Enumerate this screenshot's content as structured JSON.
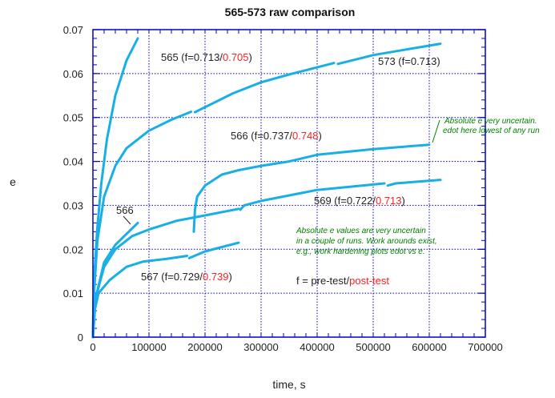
{
  "chart_data": {
    "type": "line",
    "title": "565-573 raw comparison",
    "xlabel": "time, s",
    "ylabel": "e",
    "xlim": [
      0,
      700000
    ],
    "ylim": [
      0,
      0.07
    ],
    "xticks": [
      "0",
      "100000",
      "200000",
      "300000",
      "400000",
      "500000",
      "600000",
      "700000"
    ],
    "yticks": [
      "0",
      "0.01",
      "0.02",
      "0.03",
      "0.04",
      "0.05",
      "0.06",
      "0.07"
    ],
    "grid": true,
    "colors": {
      "series": "#18aee6",
      "axis": "#0000cc",
      "red": "#ff2020",
      "note": "#008000",
      "text": "#222222"
    },
    "series": [
      {
        "name": "565",
        "segments": [
          [
            [
              0,
              0
            ],
            [
              1000,
              0.008
            ],
            [
              3000,
              0.015
            ],
            [
              8000,
              0.025
            ],
            [
              15000,
              0.035
            ],
            [
              25000,
              0.045
            ],
            [
              40000,
              0.055
            ],
            [
              60000,
              0.063
            ],
            [
              80000,
              0.068
            ]
          ]
        ]
      },
      {
        "name": "573",
        "segments": [
          [
            [
              0,
              0
            ],
            [
              2000,
              0.01
            ],
            [
              8000,
              0.022
            ],
            [
              20000,
              0.032
            ],
            [
              40000,
              0.039
            ],
            [
              60000,
              0.043
            ],
            [
              100000,
              0.047
            ],
            [
              140000,
              0.0495
            ],
            [
              175000,
              0.0513
            ]
          ],
          [
            [
              182000,
              0.0512
            ],
            [
              250000,
              0.0555
            ],
            [
              300000,
              0.058
            ],
            [
              350000,
              0.0598
            ],
            [
              430000,
              0.0624
            ]
          ],
          [
            [
              437000,
              0.0622
            ],
            [
              500000,
              0.0642
            ],
            [
              560000,
              0.0655
            ],
            [
              620000,
              0.0668
            ]
          ]
        ]
      },
      {
        "name": "566",
        "segments": [
          [
            [
              0,
              0
            ],
            [
              5000,
              0.009
            ],
            [
              20000,
              0.017
            ],
            [
              40000,
              0.021
            ],
            [
              60000,
              0.0235
            ],
            [
              80000,
              0.026
            ]
          ],
          [
            [
              180000,
              0.024
            ],
            [
              182000,
              0.029
            ],
            [
              186000,
              0.032
            ],
            [
              200000,
              0.0345
            ],
            [
              230000,
              0.037
            ],
            [
              260000,
              0.038
            ],
            [
              300000,
              0.039
            ],
            [
              350000,
              0.04
            ],
            [
              400000,
              0.0415
            ],
            [
              500000,
              0.0428
            ],
            [
              600000,
              0.0438
            ]
          ]
        ]
      },
      {
        "name": "569",
        "segments": [
          [
            [
              0,
              0
            ],
            [
              5000,
              0.009
            ],
            [
              20000,
              0.016
            ],
            [
              40000,
              0.02
            ],
            [
              70000,
              0.023
            ],
            [
              100000,
              0.0245
            ],
            [
              150000,
              0.0265
            ],
            [
              200000,
              0.0277
            ],
            [
              260000,
              0.0292
            ]
          ],
          [
            [
              263000,
              0.029
            ],
            [
              270000,
              0.03
            ],
            [
              300000,
              0.031
            ],
            [
              400000,
              0.0335
            ],
            [
              520000,
              0.035
            ]
          ],
          [
            [
              526000,
              0.0345
            ],
            [
              540000,
              0.035
            ],
            [
              620000,
              0.0358
            ]
          ]
        ]
      },
      {
        "name": "567",
        "segments": [
          [
            [
              0,
              0
            ],
            [
              3000,
              0.006
            ],
            [
              10000,
              0.01
            ],
            [
              30000,
              0.013
            ],
            [
              60000,
              0.016
            ],
            [
              90000,
              0.0172
            ],
            [
              130000,
              0.0178
            ],
            [
              168000,
              0.0185
            ]
          ],
          [
            [
              172000,
              0.018
            ],
            [
              200000,
              0.0195
            ],
            [
              230000,
              0.0205
            ],
            [
              260000,
              0.0215
            ]
          ]
        ]
      }
    ],
    "annotations": {
      "s565": {
        "pre": "565 (f=0.713/",
        "post": "0.705",
        "end": ")"
      },
      "s573": {
        "text": "573 (f=0.713)"
      },
      "s566": {
        "pre": "566 (f=0.737/",
        "post": "0.748",
        "end": ")"
      },
      "s566short": {
        "text": "566"
      },
      "s569": {
        "pre": "569 (f=0.722/",
        "post": "0.713",
        "end": ")"
      },
      "s567": {
        "pre": "567 (f=0.729/",
        "post": "0.739",
        "end": ")"
      },
      "legend": {
        "pre": "f = pre-test/",
        "post": "post-test"
      },
      "note1": [
        "Absolute e very uncertain.",
        "edot here lowest of any run"
      ],
      "note2": [
        "Absolute e values are very uncertain",
        "in a couple of runs.  Work arounds exist,",
        "e.g.,   work hardening plots edot vs e."
      ]
    }
  }
}
